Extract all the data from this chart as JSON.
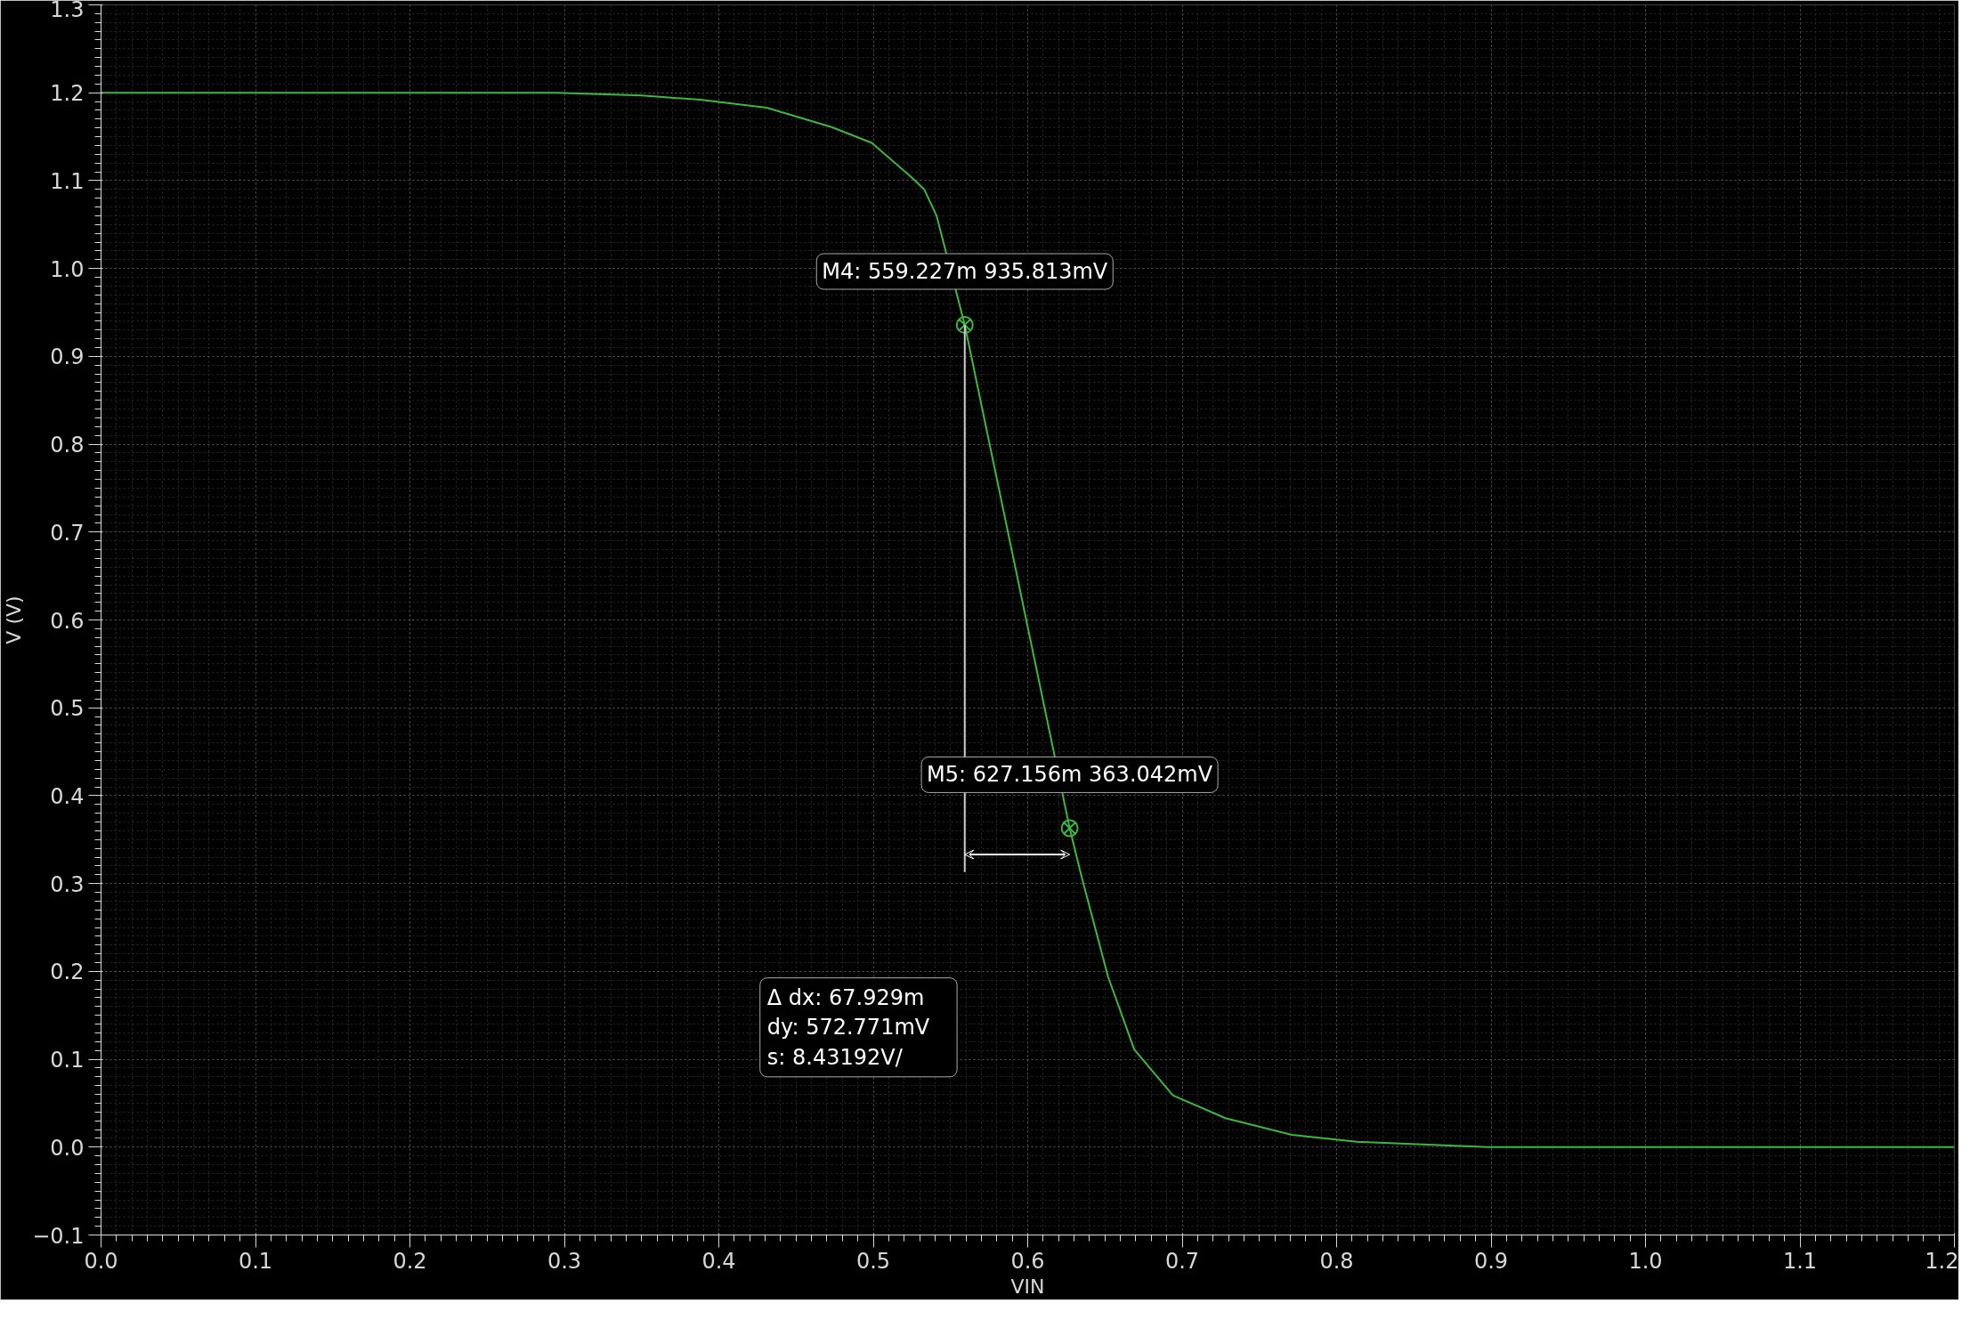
{
  "chart_data": {
    "type": "line",
    "xlabel": "VIN",
    "ylabel": "V (V)",
    "x": [
      0.0,
      0.1,
      0.2,
      0.295,
      0.35,
      0.388,
      0.431,
      0.473,
      0.499,
      0.524,
      0.533,
      0.541,
      0.559227,
      0.627156,
      0.635,
      0.652,
      0.669,
      0.694,
      0.728,
      0.771,
      0.813,
      0.898,
      1.0,
      1.1,
      1.2
    ],
    "series": [
      {
        "color": "#3cb83c",
        "values": [
          1.2,
          1.2,
          1.2,
          1.2,
          1.197,
          1.192,
          1.183,
          1.161,
          1.143,
          1.105,
          1.09,
          1.06,
          0.935813,
          0.363042,
          0.307,
          0.194,
          0.111,
          0.059,
          0.033,
          0.014,
          0.006,
          0.0,
          0.0,
          0.0,
          0.0
        ]
      }
    ],
    "xlim": [
      0.0,
      1.2
    ],
    "ylim": [
      -0.1,
      1.3
    ],
    "xticks": [
      {
        "value": 0.0,
        "label": "0.0"
      },
      0.1,
      0.2,
      0.3,
      0.4,
      0.5,
      0.6,
      0.7,
      0.8,
      0.9,
      {
        "value": 1.0,
        "label": "1.0"
      },
      1.1,
      1.2
    ],
    "yticks": [
      -0.1,
      {
        "value": 0.0,
        "label": "0.0"
      },
      0.1,
      0.2,
      0.3,
      0.4,
      0.5,
      0.6,
      0.7,
      0.8,
      0.9,
      {
        "value": 1.0,
        "label": "1.0"
      },
      1.1,
      1.2,
      1.3
    ],
    "ref_lines": [
      {
        "axis": "x",
        "value": 0.559227,
        "color": "#cccccc"
      }
    ],
    "grid": true,
    "marker": "none",
    "line_style": "solid",
    "annotations": [
      {
        "text": "M4: 559.227m 935.813mV",
        "x": 0.559227,
        "y": 0.935813
      },
      {
        "text": "M5: 627.156m 363.042mV",
        "x": 0.627156,
        "y": 0.363042
      },
      "Δ dx: 67.929m\n   dy: 572.771mV\n   s: 8.43192V/"
    ]
  }
}
